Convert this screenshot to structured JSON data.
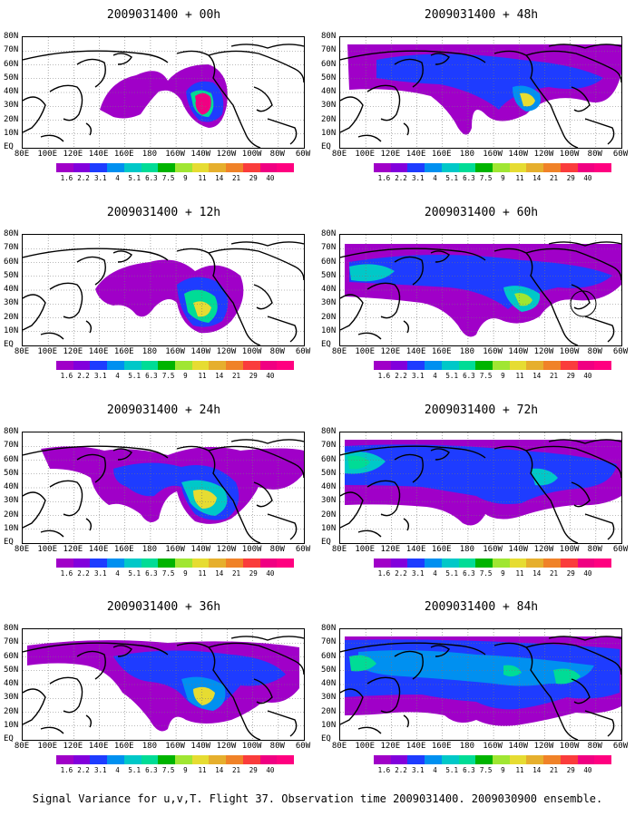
{
  "panels": [
    {
      "title": "2009031400 + 00h",
      "col": 0,
      "row": 0
    },
    {
      "title": "2009031400 + 48h",
      "col": 1,
      "row": 0
    },
    {
      "title": "2009031400 + 12h",
      "col": 0,
      "row": 1
    },
    {
      "title": "2009031400 + 60h",
      "col": 1,
      "row": 1
    },
    {
      "title": "2009031400 + 24h",
      "col": 0,
      "row": 2
    },
    {
      "title": "2009031400 + 72h",
      "col": 1,
      "row": 2
    },
    {
      "title": "2009031400 + 36h",
      "col": 0,
      "row": 3
    },
    {
      "title": "2009031400 + 84h",
      "col": 1,
      "row": 3
    }
  ],
  "lat_labels": [
    "80N",
    "70N",
    "60N",
    "50N",
    "40N",
    "30N",
    "20N",
    "10N",
    "EQ"
  ],
  "lon_labels": [
    "80E",
    "100E",
    "120E",
    "140E",
    "160E",
    "180",
    "160W",
    "140W",
    "120W",
    "100W",
    "80W",
    "60W"
  ],
  "colorbar": {
    "levels": [
      "1.6",
      "2.2",
      "3.1",
      "4",
      "5.1",
      "6.3",
      "7.5",
      "9",
      "11",
      "14",
      "21",
      "29",
      "40"
    ],
    "colors": [
      "#a000c8",
      "#8200dc",
      "#1e3cff",
      "#0090f0",
      "#00c8c8",
      "#00dc96",
      "#00b400",
      "#a0e632",
      "#e6dc32",
      "#e6af2d",
      "#f08228",
      "#fa3c3c",
      "#f00082"
    ]
  },
  "footer": "Signal Variance for u,v,T. Flight 37. Observation time 2009031400. 2009030900 ensemble."
}
